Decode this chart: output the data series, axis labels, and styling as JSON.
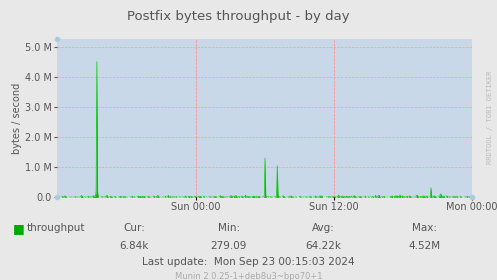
{
  "title": "Postfix bytes throughput - by day",
  "ylabel": "bytes / second",
  "bg_color": "#e8e8e8",
  "plot_bg_color": "#c8d8e8",
  "grid_color": "#ff9999",
  "line_color": "#00cc00",
  "fill_color": "#00aa00",
  "ylim": [
    0,
    5250000
  ],
  "cur": "6.84k",
  "min": "279.09",
  "avg": "64.22k",
  "max": "4.52M",
  "last_update": "Mon Sep 23 00:15:03 2024",
  "footer": "Munin 2.0.25-1+deb8u3~bpo70+1",
  "right_label": "RRDTOOL / TOBI OETIKER",
  "legend_label": "throughput",
  "legend_color": "#00aa00",
  "text_color": "#555555",
  "footer_color": "#aaaaaa"
}
